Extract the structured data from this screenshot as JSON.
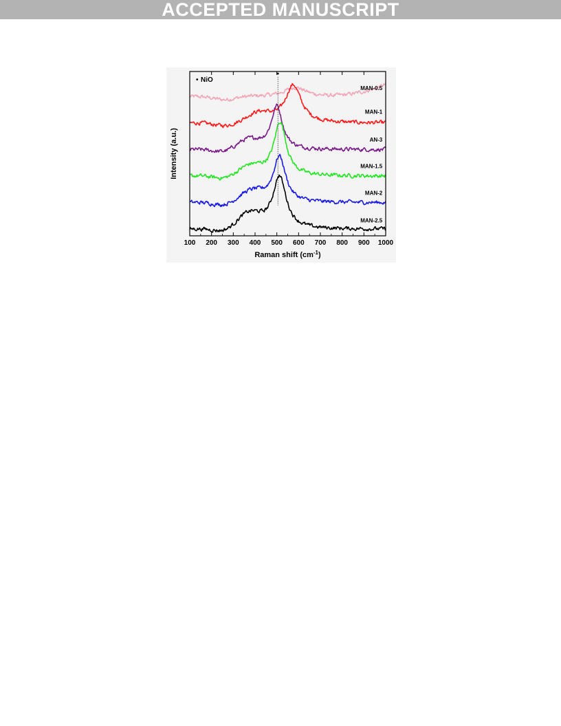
{
  "banner": {
    "text": "ACCEPTED MANUSCRIPT"
  },
  "chart_data": {
    "type": "line",
    "xlabel": "Raman shift (cm",
    "xlabel_superscript": "-1",
    "xlabel_close": ")",
    "ylabel": "Intensity (a.u.)",
    "xlim": [
      100,
      1000
    ],
    "xticks": [
      100,
      200,
      300,
      400,
      500,
      600,
      700,
      800,
      900,
      1000
    ],
    "y_ticks_shown": false,
    "legend": {
      "marker": "•",
      "label": "NiO",
      "placement": "top-left"
    },
    "annotation": {
      "marker": "•",
      "x": 505,
      "description_style": "dotted vertical line at NiO peak"
    },
    "series": [
      {
        "name": "MAN-0.5",
        "color": "#f2a6b8",
        "offset": 5.0,
        "baseline": 0.0,
        "peak_center": 585,
        "peak_height": 0.35,
        "peak_width": 60,
        "shoulder_center": 0,
        "shoulder_height": 0.0,
        "edge_rise": 0.45,
        "label_offset": 0.25
      },
      {
        "name": "MAN-1",
        "color": "#ff1a1a",
        "offset": 4.0,
        "baseline": 0.0,
        "peak_center": 575,
        "peak_height": 1.45,
        "peak_width": 45,
        "shoulder_center": 420,
        "shoulder_height": 0.35,
        "edge_rise": 0.0,
        "label_offset": 0.35
      },
      {
        "name": "AN-3",
        "color": "#7a1a8a",
        "offset": 3.0,
        "baseline": 0.0,
        "peak_center": 500,
        "peak_height": 1.65,
        "peak_width": 32,
        "shoulder_center": 370,
        "shoulder_height": 0.35,
        "edge_rise": 0.0,
        "label_offset": 0.3
      },
      {
        "name": "MAN-1.5",
        "color": "#22e622",
        "offset": 2.0,
        "baseline": 0.0,
        "peak_center": 515,
        "peak_height": 2.05,
        "peak_width": 35,
        "shoulder_center": 380,
        "shoulder_height": 0.35,
        "edge_rise": 0.0,
        "label_offset": 0.3
      },
      {
        "name": "MAN-2",
        "color": "#1a1ae6",
        "offset": 1.0,
        "baseline": 0.0,
        "peak_center": 512,
        "peak_height": 1.75,
        "peak_width": 35,
        "shoulder_center": 385,
        "shoulder_height": 0.4,
        "edge_rise": 0.0,
        "label_offset": 0.3
      },
      {
        "name": "MAN-2.5",
        "color": "#000000",
        "offset": 0.0,
        "baseline": 0.0,
        "peak_center": 512,
        "peak_height": 2.0,
        "peak_width": 38,
        "shoulder_center": 375,
        "shoulder_height": 0.55,
        "edge_rise": 0.0,
        "label_offset": 0.25
      }
    ]
  }
}
